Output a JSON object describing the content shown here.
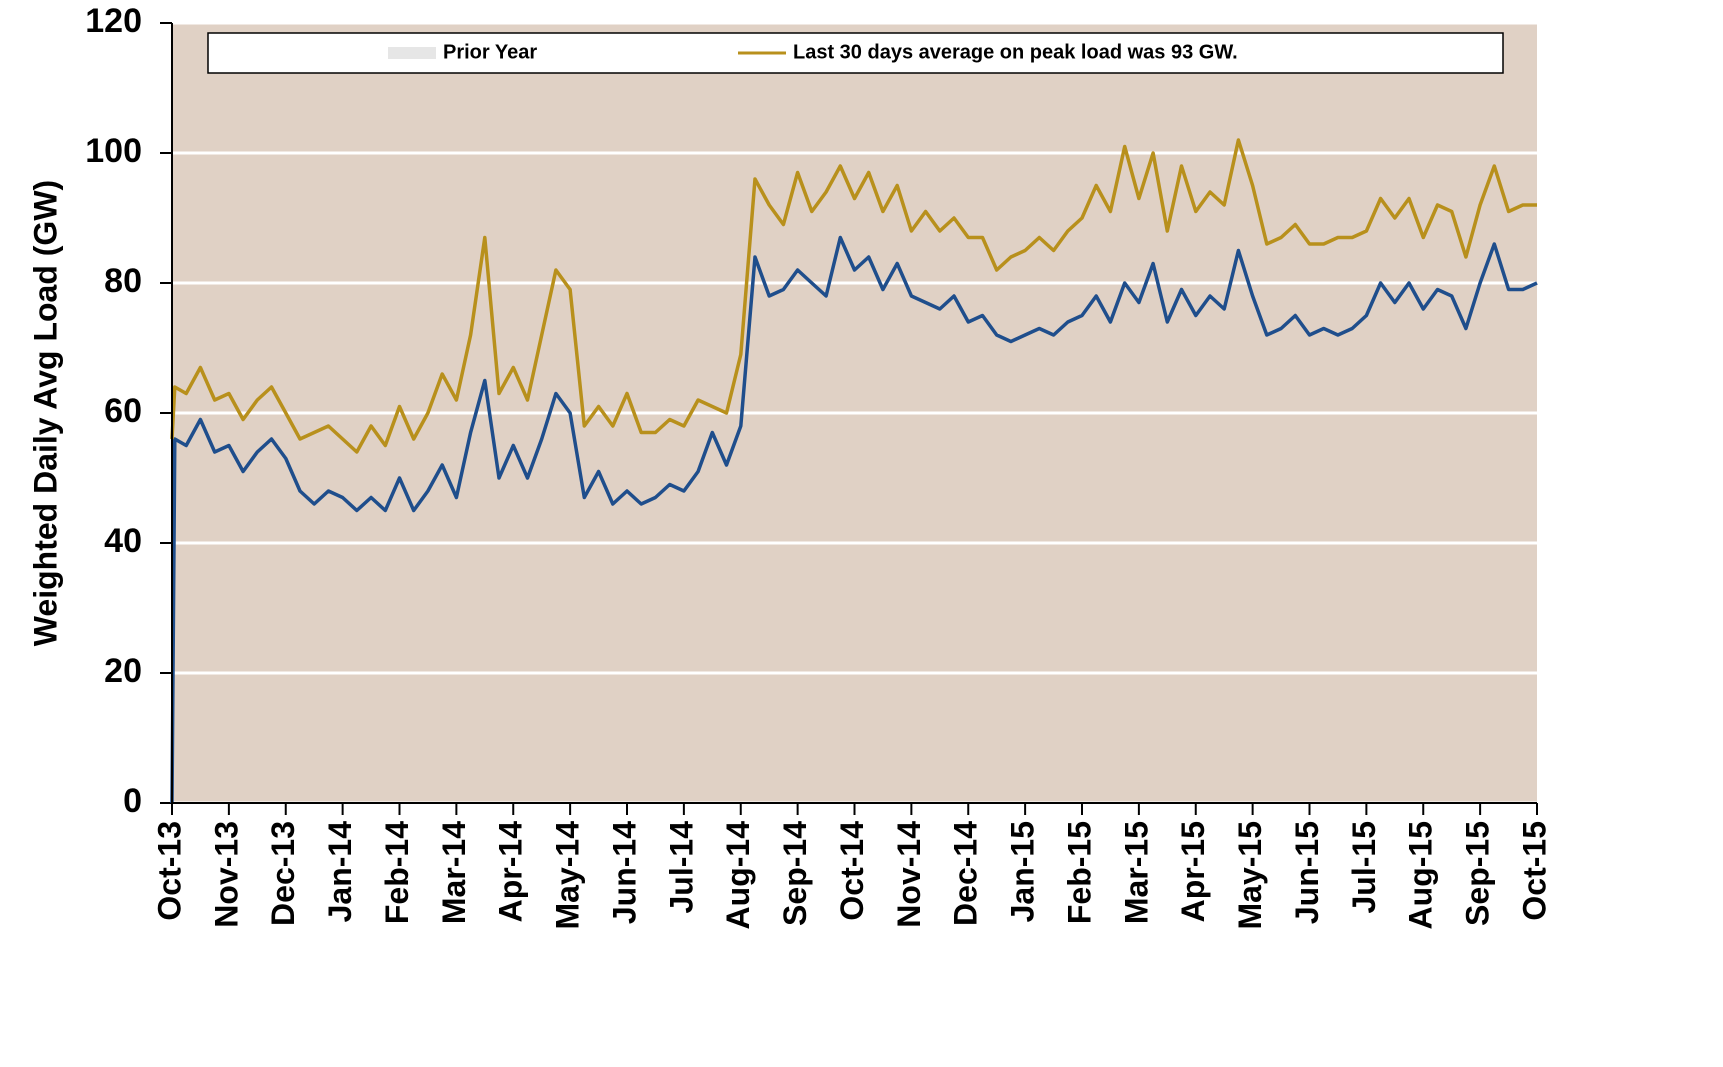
{
  "chart_data": {
    "type": "line",
    "ylabel": "Weighted Daily Avg Load (GW)",
    "ylim": [
      0,
      120
    ],
    "yticks": [
      0,
      20,
      40,
      60,
      80,
      100,
      120
    ],
    "xlim": [
      0,
      24
    ],
    "xticks": [
      {
        "value": 0,
        "label": "Oct-13"
      },
      {
        "value": 1,
        "label": "Nov-13"
      },
      {
        "value": 2,
        "label": "Dec-13"
      },
      {
        "value": 3,
        "label": "Jan-14"
      },
      {
        "value": 4,
        "label": "Feb-14"
      },
      {
        "value": 5,
        "label": "Mar-14"
      },
      {
        "value": 6,
        "label": "Apr-14"
      },
      {
        "value": 7,
        "label": "May-14"
      },
      {
        "value": 8,
        "label": "Jun-14"
      },
      {
        "value": 9,
        "label": "Jul-14"
      },
      {
        "value": 10,
        "label": "Aug-14"
      },
      {
        "value": 11,
        "label": "Sep-14"
      },
      {
        "value": 12,
        "label": "Oct-14"
      },
      {
        "value": 13,
        "label": "Nov-14"
      },
      {
        "value": 14,
        "label": "Dec-14"
      },
      {
        "value": 15,
        "label": "Jan-15"
      },
      {
        "value": 16,
        "label": "Feb-15"
      },
      {
        "value": 17,
        "label": "Mar-15"
      },
      {
        "value": 18,
        "label": "Apr-15"
      },
      {
        "value": 19,
        "label": "May-15"
      },
      {
        "value": 20,
        "label": "Jun-15"
      },
      {
        "value": 21,
        "label": "Jul-15"
      },
      {
        "value": 22,
        "label": "Aug-15"
      },
      {
        "value": 23,
        "label": "Sep-15"
      },
      {
        "value": 24,
        "label": "Oct-15"
      }
    ],
    "grid": true,
    "background": "#e0d1c5",
    "x": [
      0,
      0.05,
      0.25,
      0.5,
      0.75,
      1,
      1.25,
      1.5,
      1.75,
      2,
      2.25,
      2.5,
      2.75,
      3,
      3.25,
      3.5,
      3.75,
      4,
      4.25,
      4.5,
      4.75,
      5,
      5.25,
      5.5,
      5.75,
      6,
      6.25,
      6.5,
      6.75,
      7,
      7.25,
      7.5,
      7.75,
      8,
      8.25,
      8.5,
      8.75,
      9,
      9.25,
      9.5,
      9.75,
      10,
      10.25,
      10.5,
      10.75,
      11,
      11.25,
      11.5,
      11.75,
      12,
      12.25,
      12.5,
      12.75,
      13,
      13.25,
      13.5,
      13.75,
      14,
      14.25,
      14.5,
      14.75,
      15,
      15.25,
      15.5,
      15.75,
      16,
      16.25,
      16.5,
      16.75,
      17,
      17.25,
      17.5,
      17.75,
      18,
      18.25,
      18.5,
      18.75,
      19,
      19.25,
      19.5,
      19.75,
      20,
      20.25,
      20.5,
      20.75,
      21,
      21.25,
      21.5,
      21.75,
      22,
      22.25,
      22.5,
      22.75,
      23,
      23.25,
      23.5,
      23.75,
      24
    ],
    "series": [
      {
        "name": "Prior Year",
        "color": "#e6e6e6",
        "style": "area"
      },
      {
        "name": "Last 30 days average on peak load was 93 GW.",
        "color": "#b8901c",
        "values": [
          56,
          64,
          63,
          67,
          62,
          63,
          59,
          62,
          64,
          60,
          56,
          57,
          58,
          56,
          54,
          58,
          55,
          61,
          56,
          60,
          66,
          62,
          72,
          87,
          63,
          67,
          62,
          72,
          82,
          79,
          58,
          61,
          58,
          63,
          57,
          57,
          59,
          58,
          62,
          61,
          60,
          69,
          96,
          92,
          89,
          97,
          91,
          94,
          98,
          93,
          97,
          91,
          95,
          88,
          91,
          88,
          90,
          87,
          87,
          82,
          84,
          85,
          87,
          85,
          88,
          90,
          95,
          91,
          101,
          93,
          100,
          88,
          98,
          91,
          94,
          92,
          102,
          95,
          86,
          87,
          89,
          86,
          86,
          87,
          87,
          88,
          93,
          90,
          93,
          87,
          92,
          91,
          84,
          92,
          98,
          91,
          92,
          92
        ]
      },
      {
        "color": "#1f4e8c",
        "values": [
          0,
          56,
          55,
          59,
          54,
          55,
          51,
          54,
          56,
          53,
          48,
          46,
          48,
          47,
          45,
          47,
          45,
          50,
          45,
          48,
          52,
          47,
          57,
          65,
          50,
          55,
          50,
          56,
          63,
          60,
          47,
          51,
          46,
          48,
          46,
          47,
          49,
          48,
          51,
          57,
          52,
          58,
          84,
          78,
          79,
          82,
          80,
          78,
          87,
          82,
          84,
          79,
          83,
          78,
          77,
          76,
          78,
          74,
          75,
          72,
          71,
          72,
          73,
          72,
          74,
          75,
          78,
          74,
          80,
          77,
          83,
          74,
          79,
          75,
          78,
          76,
          85,
          78,
          72,
          73,
          75,
          72,
          73,
          72,
          73,
          75,
          80,
          77,
          80,
          76,
          79,
          78,
          73,
          80,
          86,
          79,
          79,
          80
        ]
      }
    ]
  }
}
